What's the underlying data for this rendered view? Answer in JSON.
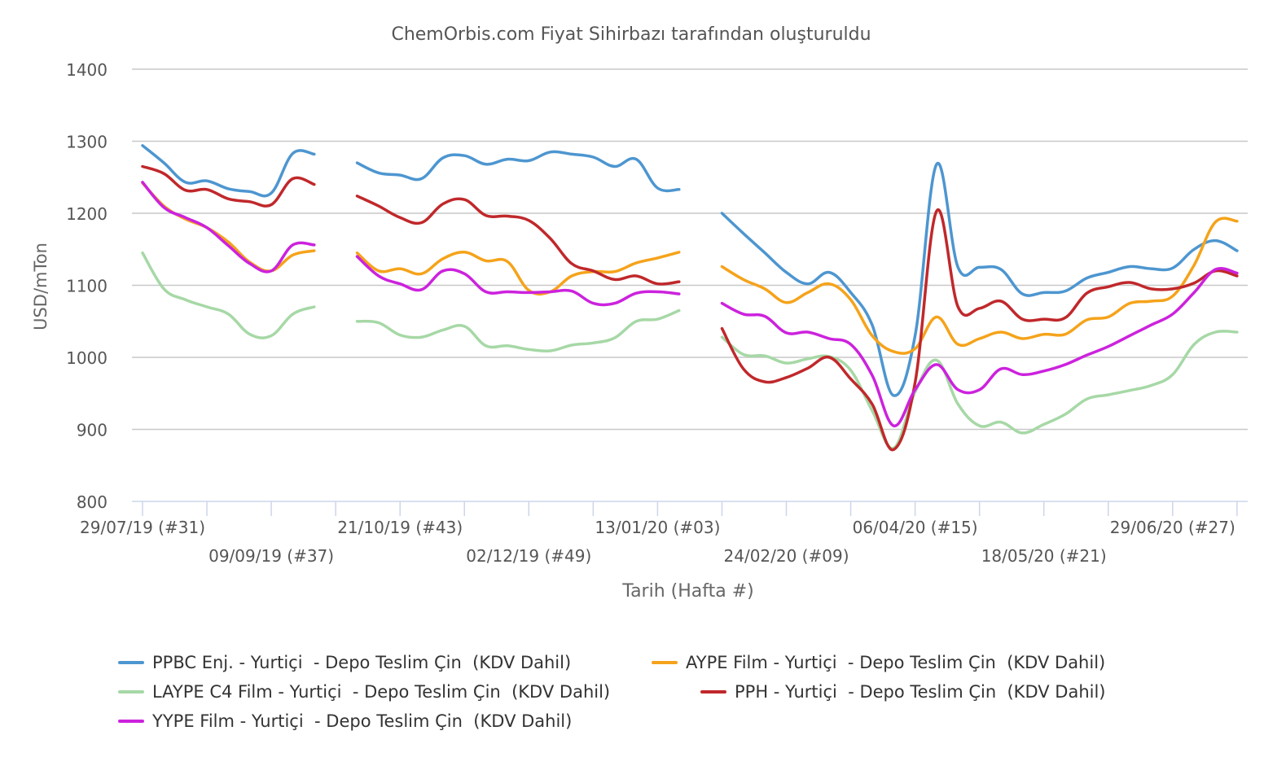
{
  "chart_data": {
    "type": "line",
    "title": "ChemOrbis.com Fiyat Sihirbazı tarafından oluşturuldu",
    "xlabel": "Tarih (Hafta #)",
    "ylabel": "USD/mTon",
    "ylim": [
      800,
      1400
    ],
    "yticks": [
      800,
      900,
      1000,
      1100,
      1200,
      1300,
      1400
    ],
    "grid": true,
    "legend_position": "bottom",
    "x_tick_labels_row1": [
      "29/07/19 (#31)",
      "21/10/19 (#43)",
      "13/01/20 (#03)",
      "06/04/20 (#15)",
      "29/06/20 (#27)"
    ],
    "x_tick_labels_row2": [
      "09/09/19 (#37)",
      "02/12/19 (#49)",
      "24/02/20 (#09)",
      "18/05/20 (#21)"
    ],
    "x_tick_label_weeks_row1": [
      0,
      12,
      24,
      36,
      48
    ],
    "x_tick_label_weeks_row2": [
      6,
      18,
      30,
      42
    ],
    "x_unit": "weeks since 29/07/19",
    "segments": [
      [
        0,
        8
      ],
      [
        10,
        25
      ],
      [
        27,
        51
      ]
    ],
    "series": [
      {
        "name": "PPBC Enj. - Yurtiçi  - Depo Teslim Çin  (KDV Dahil)",
        "color": "#4d96d0",
        "values": [
          1294,
          1270,
          1243,
          1245,
          1234,
          1230,
          1228,
          1283,
          1282,
          null,
          1270,
          1256,
          1253,
          1248,
          1277,
          1280,
          1268,
          1275,
          1273,
          1285,
          1282,
          1278,
          1265,
          1275,
          1235,
          1233,
          null,
          1200,
          1172,
          1145,
          1118,
          1102,
          1118,
          1090,
          1045,
          947,
          1030,
          1268,
          1125,
          1125,
          1122,
          1088,
          1090,
          1092,
          1110,
          1118,
          1126,
          1123,
          1124,
          1150,
          1162,
          1148
        ]
      },
      {
        "name": "AYPE Film - Yurtiçi  - Depo Teslim Çin  (KDV Dahil)",
        "color": "#f5a31b",
        "values": [
          1242,
          1210,
          1192,
          1180,
          1160,
          1132,
          1120,
          1142,
          1148,
          null,
          1145,
          1120,
          1123,
          1116,
          1137,
          1146,
          1134,
          1133,
          1093,
          1091,
          1113,
          1119,
          1119,
          1131,
          1138,
          1146,
          null,
          1126,
          1108,
          1095,
          1076,
          1090,
          1102,
          1080,
          1030,
          1008,
          1012,
          1056,
          1018,
          1026,
          1035,
          1026,
          1032,
          1032,
          1052,
          1056,
          1075,
          1078,
          1085,
          1128,
          1188,
          1189
        ]
      },
      {
        "name": "LAYPE C4 Film - Yurtiçi  - Depo Teslim Çin  (KDV Dahil)",
        "color": "#a6d8a6",
        "values": [
          1145,
          1095,
          1080,
          1070,
          1060,
          1032,
          1030,
          1060,
          1070,
          null,
          1050,
          1048,
          1031,
          1028,
          1038,
          1043,
          1016,
          1016,
          1011,
          1009,
          1017,
          1020,
          1027,
          1050,
          1053,
          1065,
          null,
          1028,
          1004,
          1002,
          992,
          998,
          1001,
          982,
          926,
          874,
          952,
          996,
          935,
          905,
          910,
          895,
          907,
          921,
          942,
          948,
          954,
          961,
          976,
          1018,
          1035,
          1035
        ]
      },
      {
        "name": "PPH - Yurtiçi  - Depo Teslim Çin  (KDV Dahil)",
        "color": "#c0282b",
        "values": [
          1265,
          1255,
          1232,
          1233,
          1220,
          1216,
          1212,
          1248,
          1240,
          null,
          1224,
          1210,
          1194,
          1187,
          1213,
          1219,
          1197,
          1196,
          1190,
          1165,
          1130,
          1120,
          1108,
          1113,
          1102,
          1105,
          null,
          1040,
          984,
          966,
          972,
          985,
          1000,
          970,
          935,
          872,
          965,
          1203,
          1070,
          1068,
          1078,
          1053,
          1053,
          1055,
          1089,
          1098,
          1104,
          1095,
          1095,
          1103,
          1120,
          1113
        ]
      },
      {
        "name": "YYPE Film - Yurtiçi  - Depo Teslim Çin  (KDV Dahil)",
        "color": "#cc22dd",
        "values": [
          1243,
          1208,
          1194,
          1180,
          1155,
          1130,
          1120,
          1156,
          1156,
          null,
          1140,
          1113,
          1102,
          1094,
          1120,
          1116,
          1091,
          1091,
          1090,
          1091,
          1092,
          1075,
          1075,
          1089,
          1091,
          1088,
          null,
          1075,
          1060,
          1057,
          1034,
          1035,
          1026,
          1018,
          975,
          905,
          955,
          990,
          955,
          955,
          984,
          976,
          981,
          990,
          1003,
          1015,
          1030,
          1045,
          1060,
          1090,
          1122,
          1117
        ]
      }
    ]
  }
}
